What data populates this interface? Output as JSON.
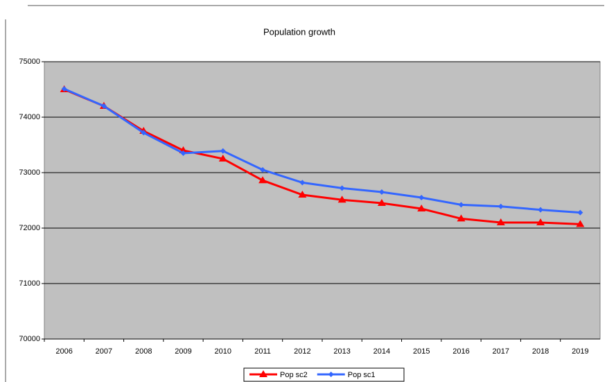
{
  "chart_data": {
    "type": "line",
    "title": "Population growth",
    "categories": [
      "2006",
      "2007",
      "2008",
      "2009",
      "2010",
      "2011",
      "2012",
      "2013",
      "2014",
      "2015",
      "2016",
      "2017",
      "2018",
      "2019"
    ],
    "series": [
      {
        "name": "Pop sc2",
        "color": "#ff0000",
        "marker": "triangle",
        "values": [
          74500,
          74200,
          73750,
          73400,
          73250,
          72860,
          72600,
          72510,
          72450,
          72350,
          72170,
          72100,
          72100,
          72070
        ]
      },
      {
        "name": "Pop sc1",
        "color": "#3366ff",
        "marker": "diamond",
        "values": [
          74510,
          74200,
          73720,
          73350,
          73390,
          73050,
          72820,
          72720,
          72650,
          72550,
          72420,
          72390,
          72330,
          72280
        ]
      }
    ],
    "ylim": [
      70000,
      75000
    ],
    "yticks": [
      70000,
      71000,
      72000,
      73000,
      74000,
      75000
    ],
    "grid": true,
    "legend": "bottom"
  }
}
